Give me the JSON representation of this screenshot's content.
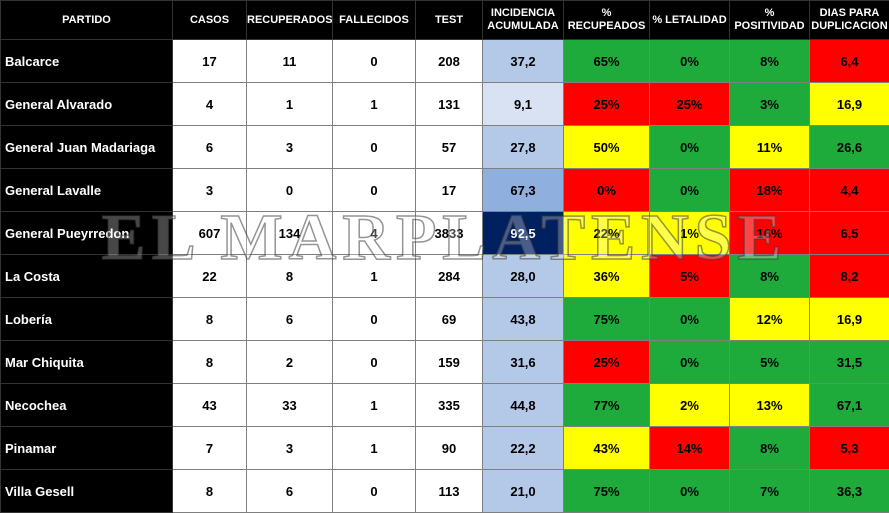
{
  "headers": [
    "PARTIDO",
    "CASOS",
    "RECUPERADOS",
    "FALLECIDOS",
    "TEST",
    "INCIDENCIA ACUMULADA",
    "% RECUPEADOS",
    "% LETALIDAD",
    "% POSITIVIDAD",
    "DIAS PARA DUPLICACION"
  ],
  "colors": {
    "green": "#1faa3c",
    "yellow": "#ffff00",
    "red": "#ff0000",
    "inc_light": "#b4c8e8",
    "inc_med": "#8fb0df",
    "inc_dark": "#002060",
    "inc_pale": "#d9e2f3"
  },
  "rows": [
    {
      "partido": "Balcarce",
      "casos": "17",
      "recuperados": "11",
      "fallecidos": "0",
      "test": "208",
      "incidencia": "37,2",
      "inc_color": "#b4c8e8",
      "inc_text": "#000000",
      "pct_rec": "65%",
      "rec_color": "#1faa3c",
      "letalidad": "0%",
      "let_color": "#1faa3c",
      "positividad": "8%",
      "pos_color": "#1faa3c",
      "dias": "6,4",
      "dias_color": "#ff0000"
    },
    {
      "partido": "General Alvarado",
      "casos": "4",
      "recuperados": "1",
      "fallecidos": "1",
      "test": "131",
      "incidencia": "9,1",
      "inc_color": "#d9e2f3",
      "inc_text": "#000000",
      "pct_rec": "25%",
      "rec_color": "#ff0000",
      "letalidad": "25%",
      "let_color": "#ff0000",
      "positividad": "3%",
      "pos_color": "#1faa3c",
      "dias": "16,9",
      "dias_color": "#ffff00"
    },
    {
      "partido": "General Juan Madariaga",
      "casos": "6",
      "recuperados": "3",
      "fallecidos": "0",
      "test": "57",
      "incidencia": "27,8",
      "inc_color": "#b4c8e8",
      "inc_text": "#000000",
      "pct_rec": "50%",
      "rec_color": "#ffff00",
      "letalidad": "0%",
      "let_color": "#1faa3c",
      "positividad": "11%",
      "pos_color": "#ffff00",
      "dias": "26,6",
      "dias_color": "#1faa3c"
    },
    {
      "partido": "General Lavalle",
      "casos": "3",
      "recuperados": "0",
      "fallecidos": "0",
      "test": "17",
      "incidencia": "67,3",
      "inc_color": "#8fb0df",
      "inc_text": "#000000",
      "pct_rec": "0%",
      "rec_color": "#ff0000",
      "letalidad": "0%",
      "let_color": "#1faa3c",
      "positividad": "18%",
      "pos_color": "#ff0000",
      "dias": "4,4",
      "dias_color": "#ff0000"
    },
    {
      "partido": "General Pueyrredon",
      "casos": "607",
      "recuperados": "134",
      "fallecidos": "4",
      "test": "3833",
      "incidencia": "92,5",
      "inc_color": "#002060",
      "inc_text": "#ffffff",
      "pct_rec": "22%",
      "rec_color": "#ffff00",
      "letalidad": "1%",
      "let_color": "#ffff00",
      "positividad": "16%",
      "pos_color": "#ff0000",
      "dias": "6,5",
      "dias_color": "#ff0000"
    },
    {
      "partido": "La Costa",
      "casos": "22",
      "recuperados": "8",
      "fallecidos": "1",
      "test": "284",
      "incidencia": "28,0",
      "inc_color": "#b4c8e8",
      "inc_text": "#000000",
      "pct_rec": "36%",
      "rec_color": "#ffff00",
      "letalidad": "5%",
      "let_color": "#ff0000",
      "positividad": "8%",
      "pos_color": "#1faa3c",
      "dias": "8,2",
      "dias_color": "#ff0000"
    },
    {
      "partido": "Lobería",
      "casos": "8",
      "recuperados": "6",
      "fallecidos": "0",
      "test": "69",
      "incidencia": "43,8",
      "inc_color": "#b4c8e8",
      "inc_text": "#000000",
      "pct_rec": "75%",
      "rec_color": "#1faa3c",
      "letalidad": "0%",
      "let_color": "#1faa3c",
      "positividad": "12%",
      "pos_color": "#ffff00",
      "dias": "16,9",
      "dias_color": "#ffff00"
    },
    {
      "partido": "Mar Chiquita",
      "casos": "8",
      "recuperados": "2",
      "fallecidos": "0",
      "test": "159",
      "incidencia": "31,6",
      "inc_color": "#b4c8e8",
      "inc_text": "#000000",
      "pct_rec": "25%",
      "rec_color": "#ff0000",
      "letalidad": "0%",
      "let_color": "#1faa3c",
      "positividad": "5%",
      "pos_color": "#1faa3c",
      "dias": "31,5",
      "dias_color": "#1faa3c"
    },
    {
      "partido": "Necochea",
      "casos": "43",
      "recuperados": "33",
      "fallecidos": "1",
      "test": "335",
      "incidencia": "44,8",
      "inc_color": "#b4c8e8",
      "inc_text": "#000000",
      "pct_rec": "77%",
      "rec_color": "#1faa3c",
      "letalidad": "2%",
      "let_color": "#ffff00",
      "positividad": "13%",
      "pos_color": "#ffff00",
      "dias": "67,1",
      "dias_color": "#1faa3c"
    },
    {
      "partido": "Pinamar",
      "casos": "7",
      "recuperados": "3",
      "fallecidos": "1",
      "test": "90",
      "incidencia": "22,2",
      "inc_color": "#b4c8e8",
      "inc_text": "#000000",
      "pct_rec": "43%",
      "rec_color": "#ffff00",
      "letalidad": "14%",
      "let_color": "#ff0000",
      "positividad": "8%",
      "pos_color": "#1faa3c",
      "dias": "5,3",
      "dias_color": "#ff0000"
    },
    {
      "partido": "Villa Gesell",
      "casos": "8",
      "recuperados": "6",
      "fallecidos": "0",
      "test": "113",
      "incidencia": "21,0",
      "inc_color": "#b4c8e8",
      "inc_text": "#000000",
      "pct_rec": "75%",
      "rec_color": "#1faa3c",
      "letalidad": "0%",
      "let_color": "#1faa3c",
      "positividad": "7%",
      "pos_color": "#1faa3c",
      "dias": "36,3",
      "dias_color": "#1faa3c"
    }
  ],
  "watermark": "EL MARPLATENSE"
}
